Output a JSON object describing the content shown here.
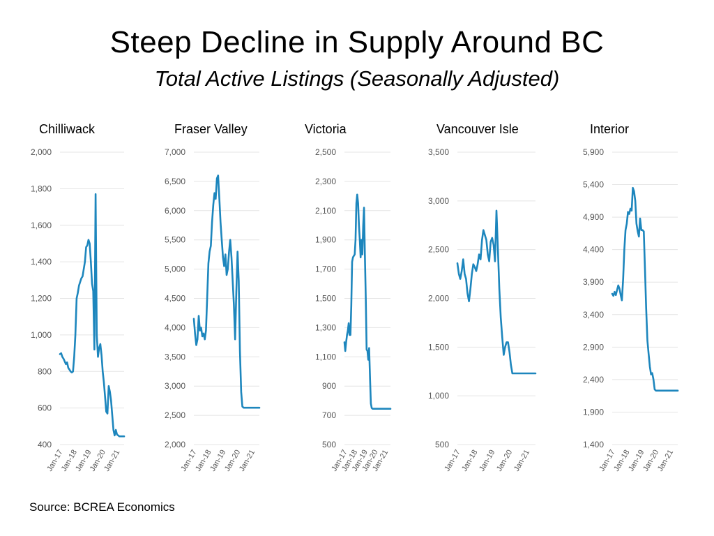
{
  "title": "Steep Decline in Supply Around BC",
  "subtitle": "Total Active Listings (Seasonally Adjusted)",
  "source": "Source: BCREA Economics",
  "colors": {
    "line": "#1d86bd",
    "grid": "#e4e4e4",
    "tick_text": "#555555"
  },
  "chart_data": [
    {
      "type": "line",
      "title": "Chilliwack",
      "x_tick_labels": [
        "Jan-17",
        "Jan-18",
        "Jan-19",
        "Jan-20",
        "Jan-21"
      ],
      "y_ticks": [
        400,
        600,
        800,
        1000,
        1200,
        1400,
        1600,
        1800,
        2000
      ],
      "y_tick_labels": [
        "400",
        "600",
        "800",
        "1,000",
        "1,200",
        "1,400",
        "1,600",
        "1,800",
        "2,000"
      ],
      "ylim": [
        400,
        2000
      ],
      "grid": true,
      "series": [
        {
          "x": [
            "2017-01",
            "2017-02",
            "2017-03",
            "2017-04",
            "2017-05",
            "2017-06",
            "2017-07",
            "2017-08",
            "2017-09",
            "2017-10",
            "2017-11",
            "2017-12",
            "2018-01",
            "2018-02",
            "2018-03",
            "2018-04",
            "2018-05",
            "2018-06",
            "2018-07",
            "2018-08",
            "2018-09",
            "2018-10",
            "2018-11",
            "2018-12",
            "2019-01",
            "2019-02",
            "2019-03",
            "2019-04",
            "2019-05",
            "2019-06",
            "2019-07",
            "2019-08",
            "2019-09",
            "2019-10",
            "2019-11",
            "2019-12",
            "2020-01",
            "2020-02",
            "2020-03",
            "2020-04",
            "2020-05",
            "2020-06",
            "2020-07",
            "2020-08",
            "2020-09",
            "2020-10",
            "2020-11",
            "2020-12",
            "2021-01",
            "2021-02",
            "2021-03",
            "2021-04",
            "2021-05",
            "2021-06",
            "2021-07"
          ],
          "values": [
            895,
            900,
            880,
            870,
            855,
            840,
            850,
            820,
            810,
            800,
            795,
            800,
            880,
            1000,
            1200,
            1230,
            1270,
            1290,
            1310,
            1320,
            1360,
            1400,
            1480,
            1490,
            1520,
            1500,
            1400,
            1280,
            1240,
            920,
            1770,
            1000,
            880,
            930,
            950,
            890,
            800,
            740,
            660,
            580,
            570,
            720,
            690,
            640,
            560,
            480,
            450,
            480,
            455,
            450,
            445,
            445,
            445,
            445,
            445
          ]
        }
      ]
    },
    {
      "type": "line",
      "title": "Fraser Valley",
      "x_tick_labels": [
        "Jan-17",
        "Jan-18",
        "Jan-19",
        "Jan-20",
        "Jan-21"
      ],
      "y_ticks": [
        2000,
        2500,
        3000,
        3500,
        4000,
        4500,
        5000,
        5500,
        6000,
        6500,
        7000
      ],
      "y_tick_labels": [
        "2,000",
        "2,500",
        "3,000",
        "3,500",
        "4,000",
        "4,500",
        "5,000",
        "5,500",
        "6,000",
        "6,500",
        "7,000"
      ],
      "ylim": [
        2000,
        7000
      ],
      "grid": true,
      "series": [
        {
          "x": [
            "2017-01",
            "2017-02",
            "2017-03",
            "2017-04",
            "2017-05",
            "2017-06",
            "2017-07",
            "2017-08",
            "2017-09",
            "2017-10",
            "2017-11",
            "2017-12",
            "2018-01",
            "2018-02",
            "2018-03",
            "2018-04",
            "2018-05",
            "2018-06",
            "2018-07",
            "2018-08",
            "2018-09",
            "2018-10",
            "2018-11",
            "2018-12",
            "2019-01",
            "2019-02",
            "2019-03",
            "2019-04",
            "2019-05",
            "2019-06",
            "2019-07",
            "2019-08",
            "2019-09",
            "2019-10",
            "2019-11",
            "2019-12",
            "2020-01",
            "2020-02",
            "2020-03",
            "2020-04",
            "2020-05",
            "2020-06",
            "2020-07",
            "2020-08",
            "2020-09",
            "2020-10",
            "2020-11",
            "2020-12",
            "2021-01",
            "2021-02",
            "2021-03",
            "2021-04",
            "2021-05",
            "2021-06",
            "2021-07"
          ],
          "values": [
            4150,
            3900,
            3700,
            3800,
            4200,
            3950,
            4000,
            3850,
            3900,
            3800,
            3950,
            4500,
            5100,
            5300,
            5400,
            5800,
            6100,
            6300,
            6200,
            6550,
            6600,
            6200,
            5800,
            5500,
            5200,
            5050,
            5250,
            4900,
            5000,
            5300,
            5500,
            5200,
            4800,
            4400,
            3800,
            4600,
            5300,
            4800,
            3600,
            2900,
            2650,
            2630,
            2630,
            2630,
            2630,
            2630,
            2630,
            2630,
            2630,
            2630,
            2630,
            2630,
            2630,
            2630,
            2630
          ]
        }
      ]
    },
    {
      "type": "line",
      "title": "Victoria",
      "x_tick_labels": [
        "Jan-17",
        "Jan-18",
        "Jan-19",
        "Jan-20",
        "Jan-21"
      ],
      "y_ticks": [
        500,
        700,
        900,
        1100,
        1300,
        1500,
        1700,
        1900,
        2100,
        2300,
        2500
      ],
      "y_tick_labels": [
        "500",
        "700",
        "900",
        "1,100",
        "1,300",
        "1,500",
        "1,700",
        "1,900",
        "2,100",
        "2,300",
        "2,500"
      ],
      "ylim": [
        500,
        2500
      ],
      "grid": true,
      "series": [
        {
          "x": [
            "2017-01",
            "2017-02",
            "2017-03",
            "2017-04",
            "2017-05",
            "2017-06",
            "2017-07",
            "2017-08",
            "2017-09",
            "2017-10",
            "2017-11",
            "2017-12",
            "2018-01",
            "2018-02",
            "2018-03",
            "2018-04",
            "2018-05",
            "2018-06",
            "2018-07",
            "2018-08",
            "2018-09",
            "2018-10",
            "2018-11",
            "2018-12",
            "2019-01",
            "2019-02",
            "2019-03",
            "2019-04",
            "2019-05",
            "2019-06",
            "2019-07",
            "2019-08",
            "2019-09",
            "2019-10",
            "2019-11",
            "2019-12",
            "2020-01",
            "2020-02",
            "2020-03",
            "2020-04",
            "2020-05",
            "2020-06",
            "2020-07",
            "2020-08",
            "2020-09",
            "2020-10",
            "2020-11",
            "2020-12",
            "2021-01",
            "2021-02",
            "2021-03",
            "2021-04",
            "2021-05",
            "2021-06",
            "2021-07"
          ],
          "values": [
            1200,
            1140,
            1200,
            1250,
            1280,
            1330,
            1250,
            1250,
            1450,
            1750,
            1780,
            1790,
            1800,
            1900,
            2150,
            2210,
            2150,
            2000,
            1900,
            1780,
            1900,
            1800,
            2000,
            2120,
            1800,
            1500,
            1150,
            1140,
            1080,
            1160,
            950,
            780,
            750,
            745,
            745,
            745,
            745,
            745,
            745,
            745,
            745,
            745,
            745,
            745,
            745,
            745,
            745,
            745,
            745,
            745,
            745,
            745,
            745,
            745,
            745
          ]
        }
      ]
    },
    {
      "type": "line",
      "title": "Vancouver Isle",
      "x_tick_labels": [
        "Jan-17",
        "Jan-18",
        "Jan-19",
        "Jan-20",
        "Jan-21"
      ],
      "y_ticks": [
        500,
        1000,
        1500,
        2000,
        2500,
        3000,
        3500
      ],
      "y_tick_labels": [
        "500",
        "1,000",
        "1,500",
        "2,000",
        "2,500",
        "3,000",
        "3,500"
      ],
      "ylim": [
        500,
        3500
      ],
      "grid": true,
      "series": [
        {
          "x": [
            "2017-01",
            "2017-02",
            "2017-03",
            "2017-04",
            "2017-05",
            "2017-06",
            "2017-07",
            "2017-08",
            "2017-09",
            "2017-10",
            "2017-11",
            "2017-12",
            "2018-01",
            "2018-02",
            "2018-03",
            "2018-04",
            "2018-05",
            "2018-06",
            "2018-07",
            "2018-08",
            "2018-09",
            "2018-10",
            "2018-11",
            "2018-12",
            "2019-01",
            "2019-02",
            "2019-03",
            "2019-04",
            "2019-05",
            "2019-06",
            "2019-07",
            "2019-08",
            "2019-09",
            "2019-10",
            "2019-11",
            "2019-12",
            "2020-01",
            "2020-02",
            "2020-03",
            "2020-04",
            "2020-05",
            "2020-06",
            "2020-07",
            "2020-08",
            "2020-09",
            "2020-10",
            "2020-11",
            "2020-12",
            "2021-01",
            "2021-02",
            "2021-03",
            "2021-04",
            "2021-05",
            "2021-06",
            "2021-07"
          ],
          "values": [
            2360,
            2250,
            2200,
            2280,
            2400,
            2250,
            2200,
            2050,
            1970,
            2100,
            2250,
            2350,
            2320,
            2280,
            2350,
            2450,
            2400,
            2600,
            2700,
            2650,
            2600,
            2450,
            2380,
            2580,
            2620,
            2550,
            2380,
            2900,
            2500,
            2100,
            1800,
            1600,
            1420,
            1500,
            1550,
            1550,
            1450,
            1320,
            1230,
            1230,
            1230,
            1230,
            1230,
            1230,
            1230,
            1230,
            1230,
            1230,
            1230,
            1230,
            1230,
            1230,
            1230,
            1230,
            1230
          ]
        }
      ]
    },
    {
      "type": "line",
      "title": "Interior",
      "x_tick_labels": [
        "Jan-17",
        "Jan-18",
        "Jan-19",
        "Jan-20",
        "Jan-21"
      ],
      "y_ticks": [
        1400,
        1900,
        2400,
        2900,
        3400,
        3900,
        4400,
        4900,
        5400,
        5900
      ],
      "y_tick_labels": [
        "1,400",
        "1,900",
        "2,400",
        "2,900",
        "3,400",
        "3,900",
        "4,400",
        "4,900",
        "5,400",
        "5,900"
      ],
      "ylim": [
        1400,
        5900
      ],
      "grid": true,
      "series": [
        {
          "x": [
            "2017-01",
            "2017-02",
            "2017-03",
            "2017-04",
            "2017-05",
            "2017-06",
            "2017-07",
            "2017-08",
            "2017-09",
            "2017-10",
            "2017-11",
            "2017-12",
            "2018-01",
            "2018-02",
            "2018-03",
            "2018-04",
            "2018-05",
            "2018-06",
            "2018-07",
            "2018-08",
            "2018-09",
            "2018-10",
            "2018-11",
            "2018-12",
            "2019-01",
            "2019-02",
            "2019-03",
            "2019-04",
            "2019-05",
            "2019-06",
            "2019-07",
            "2019-08",
            "2019-09",
            "2019-10",
            "2019-11",
            "2019-12",
            "2020-01",
            "2020-02",
            "2020-03",
            "2020-04",
            "2020-05",
            "2020-06",
            "2020-07",
            "2020-08",
            "2020-09",
            "2020-10",
            "2020-11",
            "2020-12",
            "2021-01",
            "2021-02",
            "2021-03",
            "2021-04",
            "2021-05",
            "2021-06",
            "2021-07"
          ],
          "values": [
            3720,
            3690,
            3750,
            3700,
            3780,
            3850,
            3800,
            3700,
            3620,
            3950,
            4400,
            4700,
            4800,
            4980,
            4950,
            5030,
            5000,
            5350,
            5300,
            5150,
            4800,
            4680,
            4600,
            4880,
            4700,
            4700,
            4680,
            4100,
            3500,
            3000,
            2800,
            2600,
            2480,
            2500,
            2400,
            2250,
            2230,
            2230,
            2230,
            2230,
            2230,
            2230,
            2230,
            2230,
            2230,
            2230,
            2230,
            2230,
            2230,
            2230,
            2230,
            2230,
            2230,
            2230,
            2230
          ]
        }
      ]
    }
  ]
}
